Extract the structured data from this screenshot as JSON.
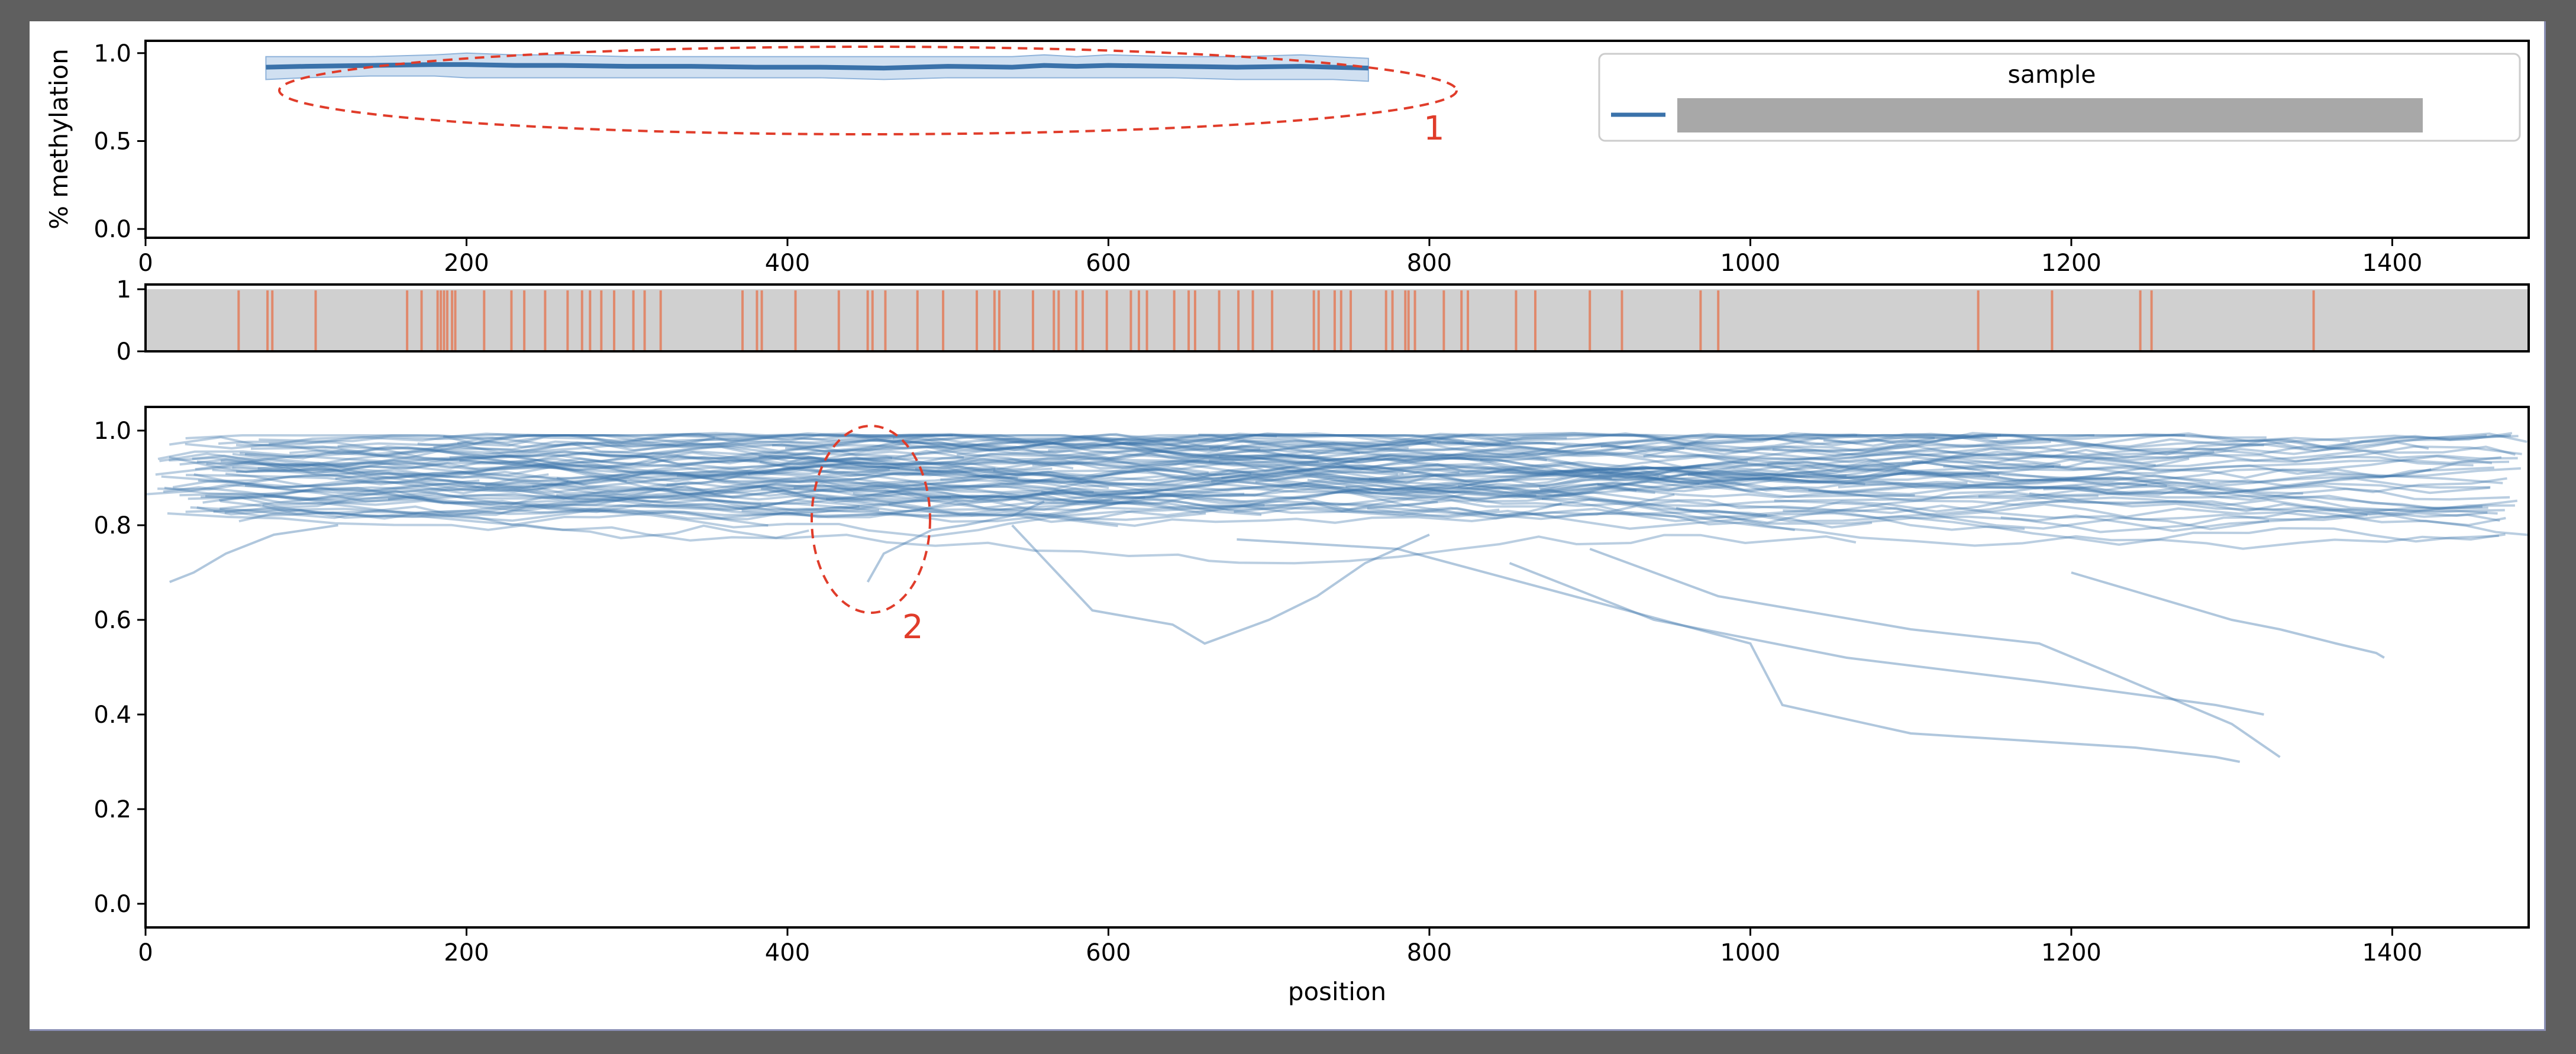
{
  "chart_data": [
    {
      "type": "line",
      "panel": "mean-methylation",
      "ylabel": "% methylation",
      "xlabel": "",
      "xlim": [
        0,
        1485
      ],
      "ylim": [
        -0.05,
        1.07
      ],
      "xticks": [
        "0",
        "200",
        "400",
        "600",
        "800",
        "1000",
        "1200",
        "1400"
      ],
      "yticks": [
        "0.0",
        "0.5",
        "1.0"
      ],
      "legend": {
        "title": "sample",
        "placement": "top-right",
        "entries": [
          ""
        ]
      },
      "series": [
        {
          "name": "",
          "color": "#3a72aa",
          "x": [
            75,
            100,
            140,
            180,
            200,
            230,
            260,
            300,
            340,
            380,
            420,
            460,
            500,
            540,
            560,
            580,
            600,
            640,
            680,
            720,
            740,
            762
          ],
          "y": [
            0.92,
            0.925,
            0.93,
            0.935,
            0.935,
            0.93,
            0.93,
            0.925,
            0.925,
            0.92,
            0.92,
            0.915,
            0.925,
            0.92,
            0.93,
            0.925,
            0.93,
            0.925,
            0.92,
            0.925,
            0.92,
            0.915
          ],
          "band_low": [
            0.85,
            0.86,
            0.87,
            0.87,
            0.86,
            0.86,
            0.86,
            0.86,
            0.86,
            0.86,
            0.86,
            0.85,
            0.86,
            0.86,
            0.86,
            0.86,
            0.86,
            0.86,
            0.85,
            0.85,
            0.85,
            0.84
          ],
          "band_high": [
            0.98,
            0.98,
            0.98,
            0.99,
            1.0,
            0.99,
            0.99,
            0.98,
            0.98,
            0.98,
            0.98,
            0.98,
            0.98,
            0.98,
            0.99,
            0.98,
            0.99,
            0.98,
            0.98,
            0.99,
            0.98,
            0.97
          ]
        }
      ]
    },
    {
      "type": "bar",
      "panel": "cpg-sites",
      "xlim": [
        0,
        1485
      ],
      "ylim": [
        0,
        1
      ],
      "yticks": [
        "0",
        "1"
      ],
      "site_color": "#e0896c",
      "background": "#d0d0d0",
      "positions": [
        58,
        76,
        79,
        106,
        163,
        172,
        182,
        184,
        186,
        188,
        191,
        193,
        211,
        228,
        236,
        249,
        263,
        272,
        277,
        284,
        292,
        304,
        311,
        321,
        372,
        381,
        384,
        405,
        432,
        450,
        453,
        461,
        481,
        497,
        518,
        529,
        532,
        553,
        566,
        569,
        580,
        584,
        599,
        614,
        619,
        624,
        641,
        650,
        654,
        669,
        681,
        690,
        702,
        728,
        731,
        741,
        745,
        751,
        773,
        777,
        785,
        787,
        791,
        809,
        820,
        824,
        854,
        866,
        900,
        920,
        969,
        980,
        1142,
        1188,
        1243,
        1250,
        1351
      ]
    },
    {
      "type": "line",
      "panel": "per-read-methylation",
      "xlabel": "position",
      "ylabel": "",
      "xlim": [
        0,
        1485
      ],
      "ylim": [
        -0.05,
        1.05
      ],
      "xticks": [
        "0",
        "200",
        "400",
        "600",
        "800",
        "1000",
        "1200",
        "1400"
      ],
      "yticks": [
        "0.0",
        "0.2",
        "0.4",
        "0.6",
        "0.8",
        "1.0"
      ],
      "color": "#3a72aa",
      "notable_reads": [
        {
          "x": [
            680,
            780,
            1000,
            1020,
            1100,
            1240,
            1290,
            1305
          ],
          "y": [
            0.77,
            0.75,
            0.55,
            0.42,
            0.36,
            0.33,
            0.31,
            0.3
          ]
        },
        {
          "x": [
            900,
            980,
            1100,
            1180,
            1230,
            1300,
            1330
          ],
          "y": [
            0.75,
            0.65,
            0.58,
            0.55,
            0.48,
            0.38,
            0.31
          ]
        },
        {
          "x": [
            850,
            940,
            1060,
            1180,
            1290,
            1320
          ],
          "y": [
            0.72,
            0.6,
            0.52,
            0.47,
            0.42,
            0.4
          ]
        },
        {
          "x": [
            540,
            590,
            640,
            660,
            700,
            730,
            760,
            800
          ],
          "y": [
            0.8,
            0.62,
            0.59,
            0.55,
            0.6,
            0.65,
            0.72,
            0.78
          ]
        },
        {
          "x": [
            450,
            460,
            490,
            510,
            540,
            560
          ],
          "y": [
            0.68,
            0.74,
            0.79,
            0.8,
            0.82,
            0.85
          ]
        },
        {
          "x": [
            1200,
            1240,
            1280,
            1300,
            1330,
            1365,
            1390,
            1395
          ],
          "y": [
            0.7,
            0.66,
            0.62,
            0.6,
            0.58,
            0.55,
            0.53,
            0.52
          ]
        },
        {
          "x": [
            15,
            30,
            50,
            80,
            120
          ],
          "y": [
            0.68,
            0.7,
            0.74,
            0.78,
            0.8
          ]
        }
      ],
      "background_reads": 130
    }
  ],
  "annotations": [
    {
      "label": "1",
      "color": "#e03c2a"
    },
    {
      "label": "2",
      "color": "#e03c2a"
    }
  ]
}
